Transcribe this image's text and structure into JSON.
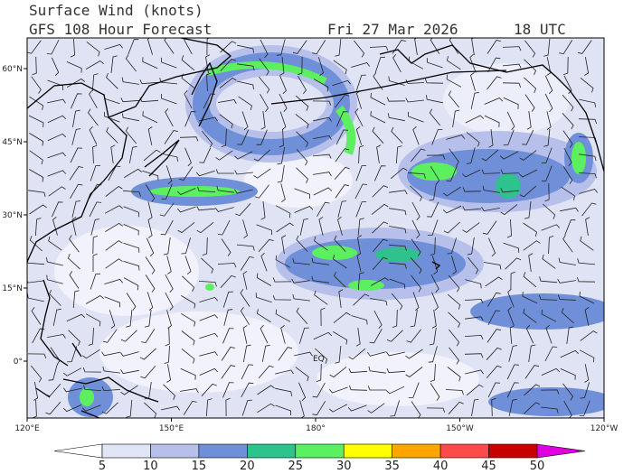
{
  "header": {
    "title": "Surface Wind (knots)",
    "subtitle": "GFS 108 Hour Forecast",
    "date": "Fri 27 Mar 2026",
    "time": "18 UTC"
  },
  "map": {
    "lat_labels": [
      {
        "value": 60,
        "label": "60°N"
      },
      {
        "value": 45,
        "label": "45°N"
      },
      {
        "value": 30,
        "label": "30°N"
      },
      {
        "value": 15,
        "label": "15°N"
      },
      {
        "value": 0,
        "label": "0°"
      }
    ],
    "lon_labels": [
      {
        "value": 120,
        "label": "120°E"
      },
      {
        "value": 150,
        "label": "150°E"
      },
      {
        "value": 180,
        "label": "180°"
      },
      {
        "value": 210,
        "label": "150°W"
      },
      {
        "value": 240,
        "label": "120°W"
      }
    ],
    "equator_label": "EQ"
  },
  "colorbar": {
    "ticks": [
      5,
      10,
      15,
      20,
      25,
      30,
      35,
      40,
      45,
      50
    ],
    "colors": [
      "#ffffff",
      "#e2e5f5",
      "#b6c0ea",
      "#6f8fd9",
      "#2ec28c",
      "#5cf060",
      "#ffff00",
      "#ffa500",
      "#ff4a4a",
      "#c80000",
      "#e000e0"
    ]
  }
}
